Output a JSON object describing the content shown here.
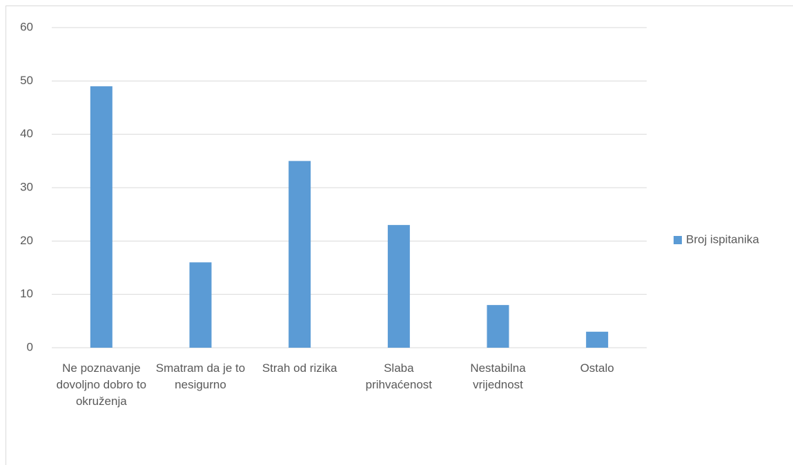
{
  "chart_data": {
    "type": "bar",
    "categories": [
      "Ne poznavanje dovoljno dobro to okruženja",
      "Smatram da je to nesigurno",
      "Strah od rizika",
      "Slaba prihvaćenost",
      "Nestabilna vrijednost",
      "Ostalo"
    ],
    "series": [
      {
        "name": "Broj ispitanika",
        "color": "#5b9bd5",
        "values": [
          49,
          16,
          35,
          23,
          8,
          3
        ]
      }
    ],
    "ylim": [
      0,
      60
    ],
    "yticks": [
      0,
      10,
      20,
      30,
      40,
      50,
      60
    ],
    "grid": true,
    "legend": "right"
  }
}
